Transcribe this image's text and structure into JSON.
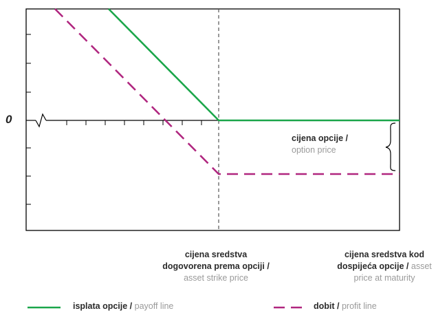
{
  "colors": {
    "payoff": "#1aa64a",
    "profit": "#b0267f",
    "axis": "#000000",
    "strike_line": "#555555",
    "english_text": "#9a9a9a"
  },
  "y_axis": {
    "zero_label": "0"
  },
  "labels": {
    "option_price": {
      "hr": "cijena opcije /",
      "en": "option price"
    },
    "strike_price": {
      "hr_line1": "cijena sredstva",
      "hr_line2": "dogovorena prema opciji /",
      "en": "asset strike price"
    },
    "maturity_price": {
      "hr_line1": "cijena sredstva kod",
      "hr_line2": "dospijeća opcije /",
      "en_line1": "asset",
      "en_line2": "price at maturity"
    }
  },
  "legend": {
    "payoff": {
      "hr": "isplata opcije /",
      "en": "payoff line",
      "style": "solid"
    },
    "profit": {
      "hr": "dobit /",
      "en": "profit line",
      "style": "dashed"
    }
  },
  "chart_data": {
    "type": "line",
    "title": "",
    "xlabel": "",
    "ylabel": "",
    "axis_break_on_x": true,
    "strike_marker": "dashed-vertical",
    "series": [
      {
        "name": "payoff line",
        "line": "solid",
        "shape": "descending to strike, then flat at 0"
      },
      {
        "name": "profit line",
        "line": "dashed",
        "shape": "descending to strike, then flat at -option price"
      }
    ]
  }
}
